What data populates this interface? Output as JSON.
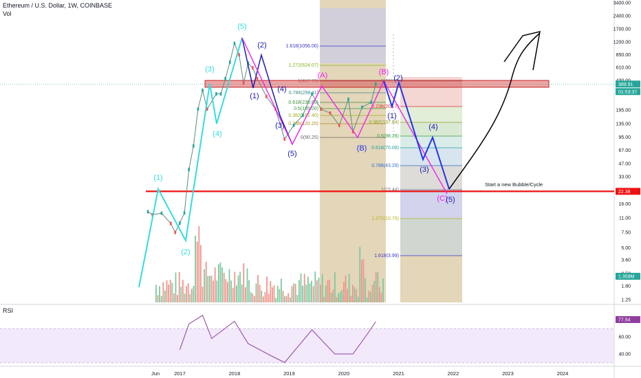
{
  "header": {
    "title": "Ethereum / U.S. Dollar, 1W, COINBASE",
    "volume_label": "Vol",
    "rsi_label": "RSI"
  },
  "colors": {
    "wave_cyan": "#33dddd",
    "wave_navy": "#1a1ab0",
    "wave_magenta": "#ee22ee",
    "wave_blue": "#2233ee",
    "up": "#26a69a",
    "down": "#ef5350",
    "support_red": "#ee1111",
    "rsi_line": "#8e3f9e",
    "rsi_band": "#efe3fa",
    "resistance_zone": "#e05a5a",
    "time_zone": "#d9c49a"
  },
  "price_scale": {
    "type": "log",
    "ticks": [
      "3400.00",
      "2400.00",
      "1700.00",
      "1200.00",
      "850.00",
      "610.00",
      "430.00",
      "195.00",
      "135.00",
      "95.00",
      "67.00",
      "47.00",
      "33.00",
      "23.00",
      "16.00",
      "11.00",
      "7.50",
      "5.00",
      "3.60",
      "2.50",
      "1.80",
      "1.25"
    ],
    "tags": [
      {
        "text": "389.91",
        "color": "#26a69a"
      },
      {
        "text": "01:53:37",
        "color": "#26a69a"
      },
      {
        "text": "22.38",
        "color": "#ee1111"
      },
      {
        "text": "1.359M",
        "color": "#26a69a"
      }
    ]
  },
  "rsi_scale": {
    "ticks": [
      "60.00",
      "40.00"
    ],
    "tag": {
      "text": "77.54",
      "color": "#8e3f9e"
    }
  },
  "time_axis": [
    "Jun",
    "2017",
    "2018",
    "2019",
    "2020",
    "2021",
    "2022",
    "2023",
    "2024"
  ],
  "fib_upper": [
    "1.618(1056.00)",
    "1.272(624.07)",
    "1(417.73)",
    "0.786(298.11)",
    "0.618(230.80)",
    "0.5(195.00)",
    "0.382(162.40)",
    "0.236(120.20)",
    "0(90.25)"
  ],
  "fib_projection": [
    "0(391.6)",
    "0.236(209.7)",
    "0.382(137.84)",
    "0.5(98.28)",
    "0.618(70.08)",
    "0.786(43.29)",
    "1(23.44)",
    "1.272(10.75)",
    "1.618(3.99)"
  ],
  "waves": {
    "cyan": [
      "(1)",
      "(2)",
      "(3)",
      "(4)",
      "(5)"
    ],
    "navy": [
      "(1)",
      "(2)",
      "(3)",
      "(4)",
      "(5)"
    ],
    "magenta": [
      "(A)",
      "(B)",
      "(C)"
    ],
    "blue_b": "(B)",
    "projection": [
      "(1)",
      "(2)",
      "(3)",
      "(4)",
      "(5)"
    ]
  },
  "annotation": "Start a new Bubble/Cycle",
  "chart_data": {
    "type": "candlestick",
    "title": "Ethereum / U.S. Dollar, 1W, COINBASE",
    "y_scale": "log",
    "ylim": [
      1.2,
      3600
    ],
    "x_range": [
      "2016-05",
      "2024-06"
    ],
    "support_level": 22.38,
    "current_price": 389.91,
    "current_volume": "1.359M",
    "current_rsi": 77.54,
    "price_path": [
      {
        "date": "2016-06",
        "price": 13
      },
      {
        "date": "2016-07",
        "price": 12
      },
      {
        "date": "2016-09",
        "price": 12.5
      },
      {
        "date": "2016-11",
        "price": 9.5
      },
      {
        "date": "2016-12",
        "price": 7.5
      },
      {
        "date": "2017-01",
        "price": 9.6
      },
      {
        "date": "2017-02",
        "price": 12.6
      },
      {
        "date": "2017-03",
        "price": 40
      },
      {
        "date": "2017-04",
        "price": 75
      },
      {
        "date": "2017-05",
        "price": 200
      },
      {
        "date": "2017-06",
        "price": 330
      },
      {
        "date": "2017-07",
        "price": 200
      },
      {
        "date": "2017-09",
        "price": 300
      },
      {
        "date": "2017-10",
        "price": 300
      },
      {
        "date": "2017-11",
        "price": 450
      },
      {
        "date": "2017-12",
        "price": 700
      },
      {
        "date": "2018-01",
        "price": 1150
      },
      {
        "date": "2018-02",
        "price": 850
      },
      {
        "date": "2018-03",
        "price": 400
      },
      {
        "date": "2018-04",
        "price": 680
      },
      {
        "date": "2018-05",
        "price": 600
      },
      {
        "date": "2018-06",
        "price": 450
      },
      {
        "date": "2018-08",
        "price": 280
      },
      {
        "date": "2018-10",
        "price": 200
      },
      {
        "date": "2018-12",
        "price": 90
      },
      {
        "date": "2019-02",
        "price": 130
      },
      {
        "date": "2019-04",
        "price": 170
      },
      {
        "date": "2019-06",
        "price": 300
      },
      {
        "date": "2019-08",
        "price": 200
      },
      {
        "date": "2019-10",
        "price": 180
      },
      {
        "date": "2019-12",
        "price": 130
      },
      {
        "date": "2020-02",
        "price": 260
      },
      {
        "date": "2020-03",
        "price": 110
      },
      {
        "date": "2020-05",
        "price": 210
      },
      {
        "date": "2020-07",
        "price": 240
      },
      {
        "date": "2020-08",
        "price": 390
      }
    ],
    "rsi_path": [
      {
        "date": "2017-01",
        "rsi": 45
      },
      {
        "date": "2017-03",
        "rsi": 75
      },
      {
        "date": "2017-06",
        "rsi": 85
      },
      {
        "date": "2017-08",
        "rsi": 58
      },
      {
        "date": "2018-01",
        "rsi": 78
      },
      {
        "date": "2018-04",
        "rsi": 52
      },
      {
        "date": "2018-09",
        "rsi": 38
      },
      {
        "date": "2018-12",
        "rsi": 30
      },
      {
        "date": "2019-06",
        "rsi": 68
      },
      {
        "date": "2019-11",
        "rsi": 40
      },
      {
        "date": "2020-03",
        "rsi": 40
      },
      {
        "date": "2020-06",
        "rsi": 62
      },
      {
        "date": "2020-08",
        "rsi": 77.54
      }
    ]
  }
}
